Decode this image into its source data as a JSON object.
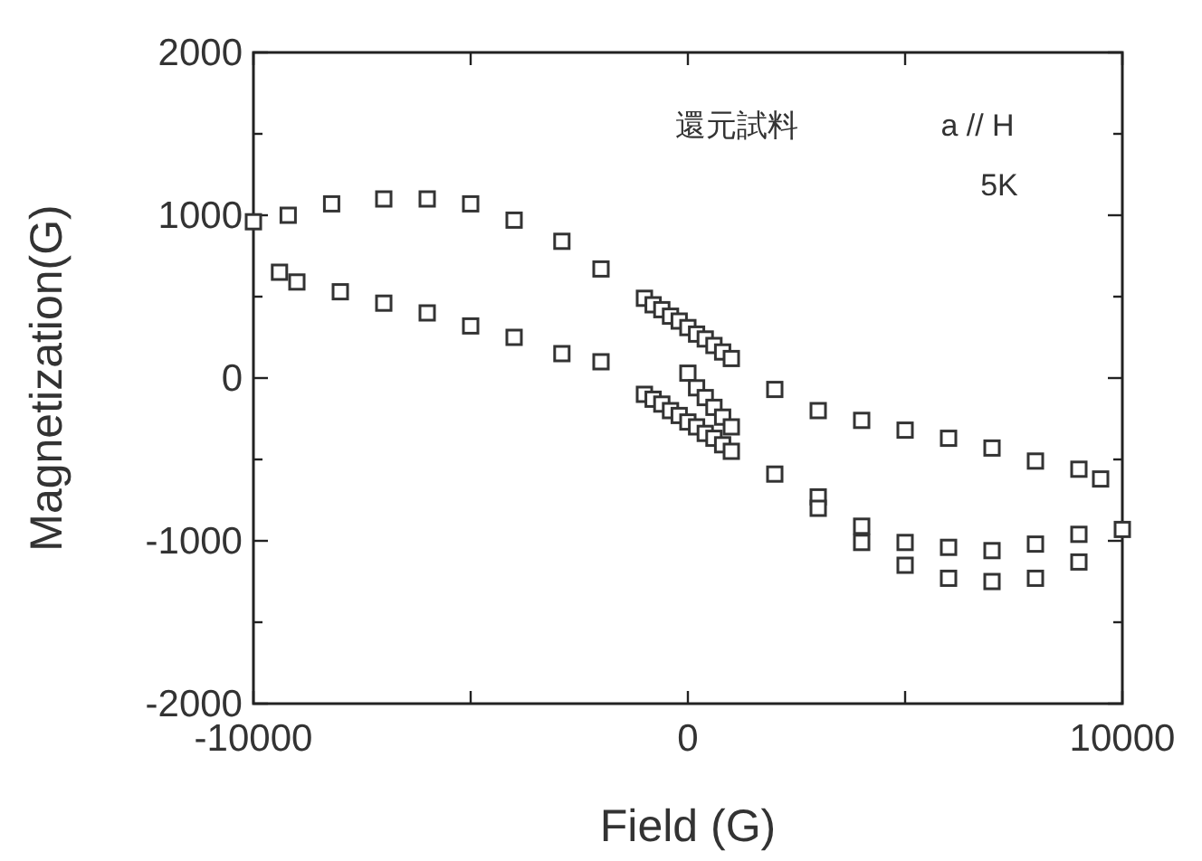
{
  "chart_data": {
    "type": "scatter",
    "xlabel": "Field (G)",
    "ylabel": "Magnetization(G)",
    "xlim": [
      -10000,
      10000
    ],
    "ylim": [
      -2000,
      2000
    ],
    "xticks": [
      -10000,
      {
        "value": -5000,
        "label": null
      },
      0,
      {
        "value": 5000,
        "label": null
      },
      10000
    ],
    "yticks": [
      -2000,
      {
        "value": -1500,
        "label": null
      },
      -1000,
      {
        "value": -500,
        "label": null
      },
      0,
      {
        "value": 500,
        "label": null
      },
      1000,
      {
        "value": 1500,
        "label": null
      },
      2000
    ],
    "marker": "square",
    "grid": false,
    "annotations": [
      "還元試料",
      "a // H",
      "5K"
    ],
    "series": [
      {
        "color": "#333333",
        "x": [
          -10000,
          -9200,
          -8200,
          -7000,
          -6000,
          -5000,
          -4000,
          -2900,
          -2000,
          -9400,
          -9000,
          -8000,
          -7000,
          -6000,
          -5000,
          -4000,
          -2900,
          -2000,
          -1000,
          -800,
          -600,
          -400,
          -200,
          0,
          200,
          400,
          600,
          800,
          1000,
          -1000,
          -800,
          -600,
          -400,
          -200,
          0,
          200,
          400,
          600,
          800,
          1000,
          0,
          200,
          400,
          600,
          800,
          1000,
          2000,
          3000,
          4000,
          5000,
          6000,
          7000,
          8000,
          9000,
          9500,
          2000,
          3000,
          3000,
          4000,
          4000,
          5000,
          5000,
          6000,
          6000,
          7000,
          7000,
          8000,
          8000,
          9000,
          9000,
          10000
        ],
        "values": [
          960,
          1000,
          1070,
          1100,
          1100,
          1070,
          970,
          840,
          670,
          650,
          590,
          530,
          460,
          400,
          320,
          250,
          150,
          100,
          490,
          450,
          420,
          380,
          350,
          310,
          270,
          240,
          200,
          160,
          120,
          -100,
          -130,
          -160,
          -200,
          -230,
          -270,
          -300,
          -340,
          -370,
          -410,
          -450,
          30,
          -60,
          -120,
          -180,
          -240,
          -300,
          -70,
          -200,
          -260,
          -320,
          -370,
          -430,
          -510,
          -560,
          -620,
          -590,
          -730,
          -800,
          -910,
          -1010,
          -1010,
          -1150,
          -1040,
          -1230,
          -1060,
          -1250,
          -1020,
          -1230,
          -960,
          -1130,
          -930
        ]
      }
    ]
  }
}
